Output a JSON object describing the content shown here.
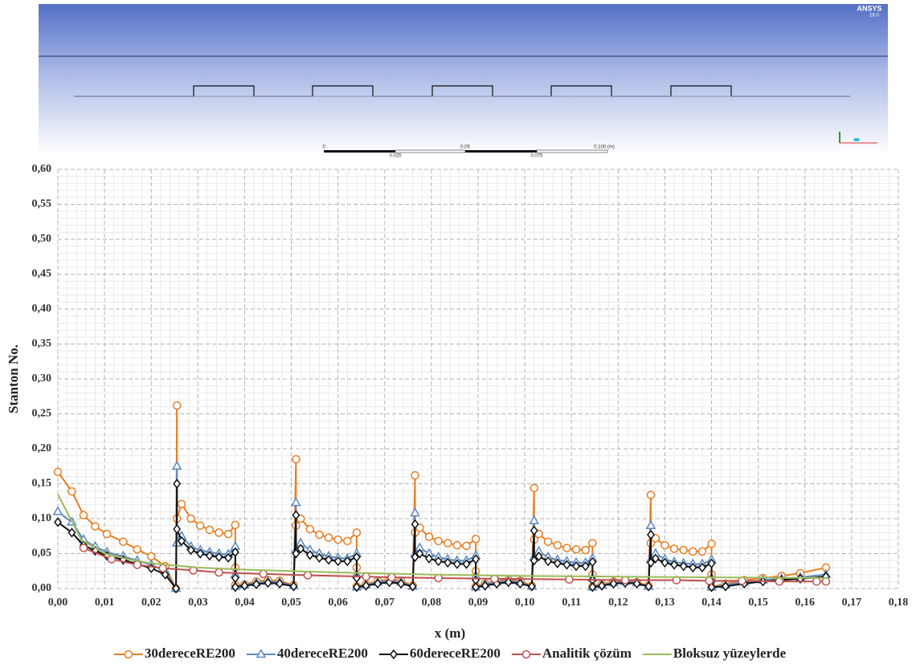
{
  "simulation_view": {
    "logo": "ANSYS",
    "version": "16.0",
    "scale_top": [
      "0",
      "0.05",
      "0.100 (m)"
    ],
    "scale_bottom": [
      "0.025",
      "0.075"
    ]
  },
  "chart_data": {
    "type": "line",
    "x_label": "x (m)",
    "y_label": "Stanton No.",
    "xlim": [
      0,
      0.18
    ],
    "ylim": [
      0,
      0.6
    ],
    "grid": true,
    "minor_grid": true,
    "legend": "bottom",
    "xticks": [
      {
        "value": 0,
        "label": "0,00"
      },
      {
        "value": 0.01,
        "label": "0,01"
      },
      {
        "value": 0.02,
        "label": "0,02"
      },
      {
        "value": 0.03,
        "label": "0,03"
      },
      {
        "value": 0.04,
        "label": "0,04"
      },
      {
        "value": 0.05,
        "label": "0,05"
      },
      {
        "value": 0.06,
        "label": "0,06"
      },
      {
        "value": 0.07,
        "label": "0,07"
      },
      {
        "value": 0.08,
        "label": "0,08"
      },
      {
        "value": 0.09,
        "label": "0,09"
      },
      {
        "value": 0.1,
        "label": "0,10"
      },
      {
        "value": 0.11,
        "label": "0,11"
      },
      {
        "value": 0.12,
        "label": "0,12"
      },
      {
        "value": 0.13,
        "label": "0,13"
      },
      {
        "value": 0.14,
        "label": "0,14"
      },
      {
        "value": 0.15,
        "label": "0,15"
      },
      {
        "value": 0.16,
        "label": "0,16"
      },
      {
        "value": 0.17,
        "label": "0,17"
      },
      {
        "value": 0.18,
        "label": "0,18"
      }
    ],
    "yticks": [
      {
        "value": 0,
        "label": "0,00"
      },
      {
        "value": 0.05,
        "label": "0,05"
      },
      {
        "value": 0.1,
        "label": "0,10"
      },
      {
        "value": 0.15,
        "label": "0,15"
      },
      {
        "value": 0.2,
        "label": "0,20"
      },
      {
        "value": 0.25,
        "label": "0,25"
      },
      {
        "value": 0.3,
        "label": "0,30"
      },
      {
        "value": 0.35,
        "label": "0,35"
      },
      {
        "value": 0.4,
        "label": "0,40"
      },
      {
        "value": 0.45,
        "label": "0,45"
      },
      {
        "value": 0.5,
        "label": "0,50"
      },
      {
        "value": 0.55,
        "label": "0,55"
      },
      {
        "value": 0.6,
        "label": "0,60"
      }
    ],
    "x": [
      0,
      0.003,
      0.0055,
      0.008,
      0.0105,
      0.014,
      0.017,
      0.02,
      0.023,
      0.0253,
      0.0255,
      0.0255,
      0.0265,
      0.0285,
      0.0305,
      0.0325,
      0.0345,
      0.0365,
      0.038,
      0.038,
      0.038,
      0.04,
      0.0425,
      0.045,
      0.0475,
      0.0505,
      0.051,
      0.051,
      0.052,
      0.054,
      0.056,
      0.058,
      0.06,
      0.062,
      0.064,
      0.064,
      0.064,
      0.066,
      0.0685,
      0.071,
      0.0735,
      0.076,
      0.0765,
      0.0765,
      0.0775,
      0.0795,
      0.0815,
      0.0835,
      0.0855,
      0.0875,
      0.0895,
      0.0895,
      0.0895,
      0.0915,
      0.094,
      0.0965,
      0.099,
      0.1015,
      0.102,
      0.102,
      0.103,
      0.105,
      0.107,
      0.109,
      0.111,
      0.113,
      0.1145,
      0.1145,
      0.1145,
      0.1165,
      0.119,
      0.1215,
      0.124,
      0.1265,
      0.127,
      0.127,
      0.128,
      0.13,
      0.132,
      0.134,
      0.136,
      0.138,
      0.14,
      0.14,
      0.14,
      0.143,
      0.147,
      0.151,
      0.155,
      0.159,
      0.1645
    ],
    "series": [
      {
        "name": "30dereceRE200",
        "color": "#e87d22",
        "marker": "circle",
        "values": [
          0.167,
          0.139,
          0.105,
          0.089,
          0.078,
          0.067,
          0.056,
          0.046,
          0.032,
          0,
          0.262,
          0.1,
          0.121,
          0.1,
          0.09,
          0.084,
          0.08,
          0.078,
          0.091,
          0.03,
          0.005,
          0.006,
          0.01,
          0.012,
          0.011,
          0.005,
          0.185,
          0.09,
          0.1,
          0.085,
          0.077,
          0.073,
          0.07,
          0.068,
          0.08,
          0.03,
          0.003,
          0.006,
          0.011,
          0.013,
          0.011,
          0.004,
          0.162,
          0.08,
          0.087,
          0.074,
          0.068,
          0.065,
          0.062,
          0.061,
          0.071,
          0.025,
          0.003,
          0.007,
          0.011,
          0.013,
          0.011,
          0.004,
          0.144,
          0.07,
          0.078,
          0.067,
          0.062,
          0.058,
          0.056,
          0.055,
          0.065,
          0.02,
          0.003,
          0.006,
          0.01,
          0.011,
          0.009,
          0.004,
          0.134,
          0.065,
          0.072,
          0.062,
          0.057,
          0.055,
          0.053,
          0.053,
          0.064,
          0.02,
          0.002,
          0.007,
          0.012,
          0.015,
          0.018,
          0.022,
          0.03
        ]
      },
      {
        "name": "40dereceRE200",
        "color": "#5b88c0",
        "marker": "triangle",
        "values": [
          0.11,
          0.095,
          0.07,
          0.06,
          0.052,
          0.046,
          0.04,
          0.034,
          0.025,
          0,
          0.175,
          0.065,
          0.075,
          0.06,
          0.055,
          0.052,
          0.05,
          0.049,
          0.06,
          0.02,
          0.003,
          0.005,
          0.008,
          0.01,
          0.009,
          0.004,
          0.123,
          0.055,
          0.065,
          0.055,
          0.05,
          0.046,
          0.044,
          0.043,
          0.05,
          0.02,
          0.002,
          0.005,
          0.009,
          0.011,
          0.009,
          0.003,
          0.108,
          0.05,
          0.058,
          0.05,
          0.045,
          0.042,
          0.04,
          0.04,
          0.047,
          0.018,
          0.002,
          0.006,
          0.009,
          0.011,
          0.009,
          0.003,
          0.097,
          0.045,
          0.053,
          0.045,
          0.041,
          0.039,
          0.037,
          0.037,
          0.043,
          0.015,
          0.002,
          0.005,
          0.008,
          0.01,
          0.008,
          0.003,
          0.09,
          0.042,
          0.05,
          0.042,
          0.038,
          0.036,
          0.035,
          0.035,
          0.041,
          0.015,
          0.002,
          0.005,
          0.009,
          0.012,
          0.014,
          0.016,
          0.02
        ]
      },
      {
        "name": "60dereceRE200",
        "color": "#111111",
        "marker": "diamond",
        "values": [
          0.095,
          0.08,
          0.062,
          0.054,
          0.047,
          0.041,
          0.035,
          0.029,
          0.02,
          0,
          0.15,
          0.085,
          0.068,
          0.055,
          0.05,
          0.047,
          0.045,
          0.044,
          0.052,
          0.015,
          0.002,
          0.004,
          0.006,
          0.008,
          0.007,
          0.003,
          0.105,
          0.05,
          0.057,
          0.048,
          0.044,
          0.041,
          0.039,
          0.039,
          0.045,
          0.015,
          0.002,
          0.004,
          0.007,
          0.009,
          0.007,
          0.003,
          0.092,
          0.045,
          0.05,
          0.043,
          0.039,
          0.037,
          0.035,
          0.035,
          0.042,
          0.012,
          0.002,
          0.004,
          0.007,
          0.009,
          0.007,
          0.003,
          0.083,
          0.04,
          0.046,
          0.039,
          0.036,
          0.034,
          0.032,
          0.032,
          0.038,
          0.012,
          0.002,
          0.004,
          0.007,
          0.008,
          0.007,
          0.003,
          0.077,
          0.037,
          0.043,
          0.037,
          0.034,
          0.032,
          0.03,
          0.03,
          0.036,
          0.01,
          0.002,
          0.003,
          0.007,
          0.01,
          0.012,
          0.014,
          0.017
        ]
      },
      {
        "name": "Analitik çözüm",
        "color": "#c0504d",
        "marker": "circle",
        "x": [
          0.0055,
          0.0115,
          0.017,
          0.0225,
          0.029,
          0.0345,
          0.044,
          0.0535,
          0.066,
          0.0715,
          0.0815,
          0.0935,
          0.1095,
          0.1215,
          0.1325,
          0.1395,
          0.1465,
          0.1545,
          0.1625,
          0.1645
        ],
        "values": [
          0.058,
          0.042,
          0.034,
          0.029,
          0.026,
          0.023,
          0.021,
          0.019,
          0.017,
          0.016,
          0.015,
          0.014,
          0.013,
          0.012,
          0.012,
          0.011,
          0.011,
          0.01,
          0.01,
          0.01
        ]
      },
      {
        "name": "Bloksuz yüzeylerde",
        "color": "#9bbb59",
        "marker": "none",
        "x": [
          0,
          0.005,
          0.01,
          0.015,
          0.02,
          0.03,
          0.04,
          0.06,
          0.08,
          0.1,
          0.12,
          0.14,
          0.165
        ],
        "values": [
          0.135,
          0.07,
          0.05,
          0.042,
          0.036,
          0.03,
          0.027,
          0.023,
          0.02,
          0.018,
          0.017,
          0.016,
          0.015
        ]
      }
    ]
  }
}
